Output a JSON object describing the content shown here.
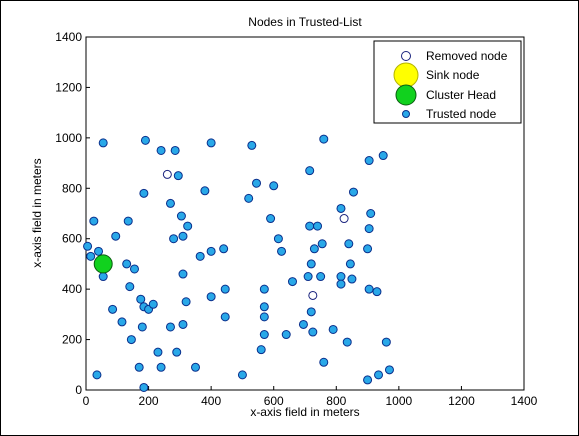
{
  "chart_data": {
    "type": "scatter",
    "title": "Nodes in Trusted-List",
    "xlabel": "x-axis field in meters",
    "ylabel": "x-axis field in meters",
    "xlim": [
      0,
      1400
    ],
    "ylim": [
      0,
      1400
    ],
    "xticks": [
      0,
      200,
      400,
      600,
      800,
      1000,
      1200,
      1400
    ],
    "yticks": [
      0,
      200,
      400,
      600,
      800,
      1000,
      1200,
      1400
    ],
    "grid": false,
    "legend_position": "top-right",
    "legend": [
      {
        "label": "Removed node",
        "marker": "circle-open"
      },
      {
        "label": "Sink node",
        "marker": "circle-large"
      },
      {
        "label": "Cluster Head",
        "marker": "circle-large"
      },
      {
        "label": "Trusted node",
        "marker": "circle-small"
      }
    ],
    "series": [
      {
        "name": "Trusted node",
        "color": "#29a8e8",
        "edge_color": "#0a2f8c",
        "points": [
          [
            55,
            980
          ],
          [
            190,
            990
          ],
          [
            240,
            950
          ],
          [
            285,
            950
          ],
          [
            400,
            980
          ],
          [
            530,
            970
          ],
          [
            760,
            995
          ],
          [
            950,
            930
          ],
          [
            905,
            910
          ],
          [
            185,
            780
          ],
          [
            270,
            740
          ],
          [
            295,
            850
          ],
          [
            380,
            790
          ],
          [
            520,
            760
          ],
          [
            545,
            820
          ],
          [
            600,
            810
          ],
          [
            715,
            870
          ],
          [
            855,
            785
          ],
          [
            25,
            670
          ],
          [
            95,
            610
          ],
          [
            135,
            670
          ],
          [
            305,
            690
          ],
          [
            325,
            650
          ],
          [
            280,
            600
          ],
          [
            310,
            610
          ],
          [
            400,
            550
          ],
          [
            440,
            560
          ],
          [
            365,
            530
          ],
          [
            590,
            680
          ],
          [
            615,
            600
          ],
          [
            625,
            550
          ],
          [
            715,
            650
          ],
          [
            740,
            650
          ],
          [
            730,
            560
          ],
          [
            755,
            580
          ],
          [
            815,
            720
          ],
          [
            840,
            580
          ],
          [
            910,
            700
          ],
          [
            905,
            640
          ],
          [
            900,
            560
          ],
          [
            5,
            570
          ],
          [
            15,
            530
          ],
          [
            40,
            550
          ],
          [
            55,
            450
          ],
          [
            130,
            500
          ],
          [
            140,
            410
          ],
          [
            155,
            480
          ],
          [
            175,
            360
          ],
          [
            185,
            330
          ],
          [
            200,
            320
          ],
          [
            215,
            340
          ],
          [
            310,
            460
          ],
          [
            320,
            350
          ],
          [
            400,
            370
          ],
          [
            445,
            400
          ],
          [
            445,
            290
          ],
          [
            570,
            400
          ],
          [
            570,
            330
          ],
          [
            570,
            290
          ],
          [
            660,
            430
          ],
          [
            720,
            500
          ],
          [
            710,
            450
          ],
          [
            750,
            450
          ],
          [
            815,
            450
          ],
          [
            815,
            420
          ],
          [
            845,
            500
          ],
          [
            850,
            440
          ],
          [
            905,
            400
          ],
          [
            930,
            390
          ],
          [
            85,
            320
          ],
          [
            115,
            270
          ],
          [
            145,
            200
          ],
          [
            170,
            90
          ],
          [
            180,
            250
          ],
          [
            230,
            150
          ],
          [
            240,
            90
          ],
          [
            270,
            250
          ],
          [
            290,
            150
          ],
          [
            310,
            260
          ],
          [
            350,
            90
          ],
          [
            500,
            60
          ],
          [
            560,
            160
          ],
          [
            570,
            220
          ],
          [
            640,
            220
          ],
          [
            695,
            260
          ],
          [
            720,
            310
          ],
          [
            725,
            230
          ],
          [
            760,
            110
          ],
          [
            790,
            240
          ],
          [
            835,
            190
          ],
          [
            900,
            40
          ],
          [
            935,
            60
          ],
          [
            970,
            80
          ],
          [
            960,
            190
          ],
          [
            35,
            60
          ],
          [
            185,
            10
          ]
        ]
      },
      {
        "name": "Removed node",
        "color": "#ffffff",
        "edge_color": "#1a237e",
        "points": [
          [
            260,
            855
          ],
          [
            825,
            680
          ],
          [
            725,
            375
          ]
        ]
      },
      {
        "name": "Cluster Head",
        "color": "#11d11e",
        "edge_color": "#0a5c10",
        "points": [
          [
            55,
            500
          ]
        ]
      }
    ]
  }
}
